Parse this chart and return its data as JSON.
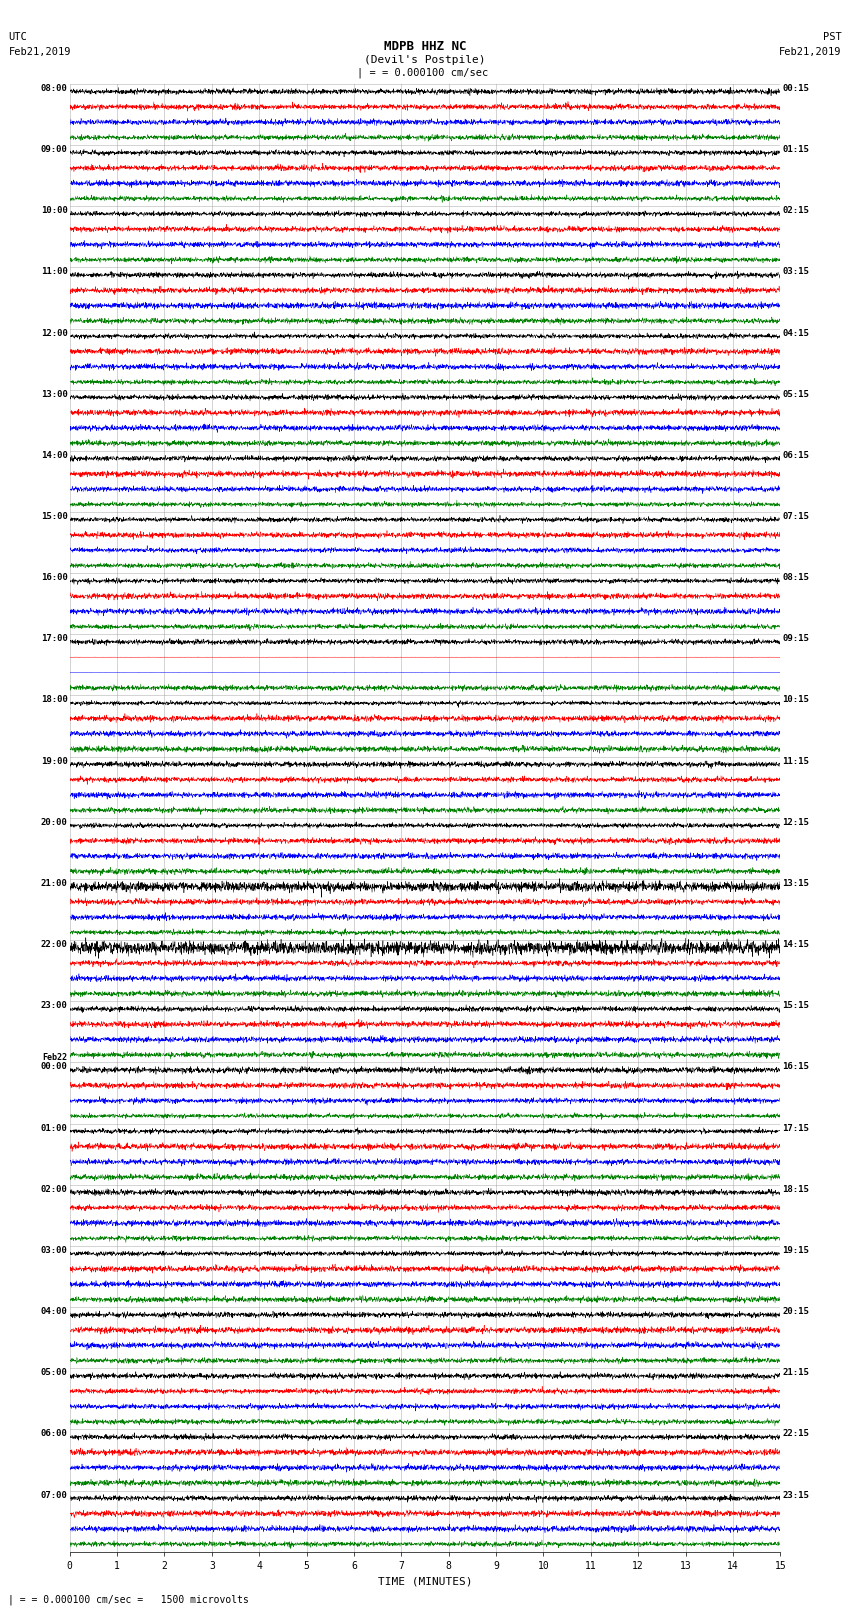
{
  "title_line1": "MDPB HHZ NC",
  "title_line2": "(Devil's Postpile)",
  "scale_text": "= 0.000100 cm/sec",
  "left_label_top": "UTC",
  "left_label_bot": "Feb21,2019",
  "right_label_top": "PST",
  "right_label_bot": "Feb21,2019",
  "bottom_note": "= 0.000100 cm/sec =   1500 microvolts",
  "xlabel": "TIME (MINUTES)",
  "utc_times_left": [
    "08:00",
    "09:00",
    "10:00",
    "11:00",
    "12:00",
    "13:00",
    "14:00",
    "15:00",
    "16:00",
    "17:00",
    "18:00",
    "19:00",
    "20:00",
    "21:00",
    "22:00",
    "23:00",
    "Feb22\n00:00",
    "01:00",
    "02:00",
    "03:00",
    "04:00",
    "05:00",
    "06:00",
    "07:00"
  ],
  "pst_times_right": [
    "00:15",
    "01:15",
    "02:15",
    "03:15",
    "04:15",
    "05:15",
    "06:15",
    "07:15",
    "08:15",
    "09:15",
    "10:15",
    "11:15",
    "12:15",
    "13:15",
    "14:15",
    "15:15",
    "16:15",
    "17:15",
    "18:15",
    "19:15",
    "20:15",
    "21:15",
    "22:15",
    "23:15"
  ],
  "colors": [
    "black",
    "red",
    "blue",
    "green"
  ],
  "n_hours": 24,
  "traces_per_hour": 4,
  "minutes": 15,
  "bg_color": "white",
  "fig_width": 8.5,
  "fig_height": 16.13,
  "dpi": 100,
  "blank_hour": 17,
  "amp_scales": [
    0.28,
    0.32,
    0.3,
    0.28
  ],
  "samples_per_minute": 200
}
